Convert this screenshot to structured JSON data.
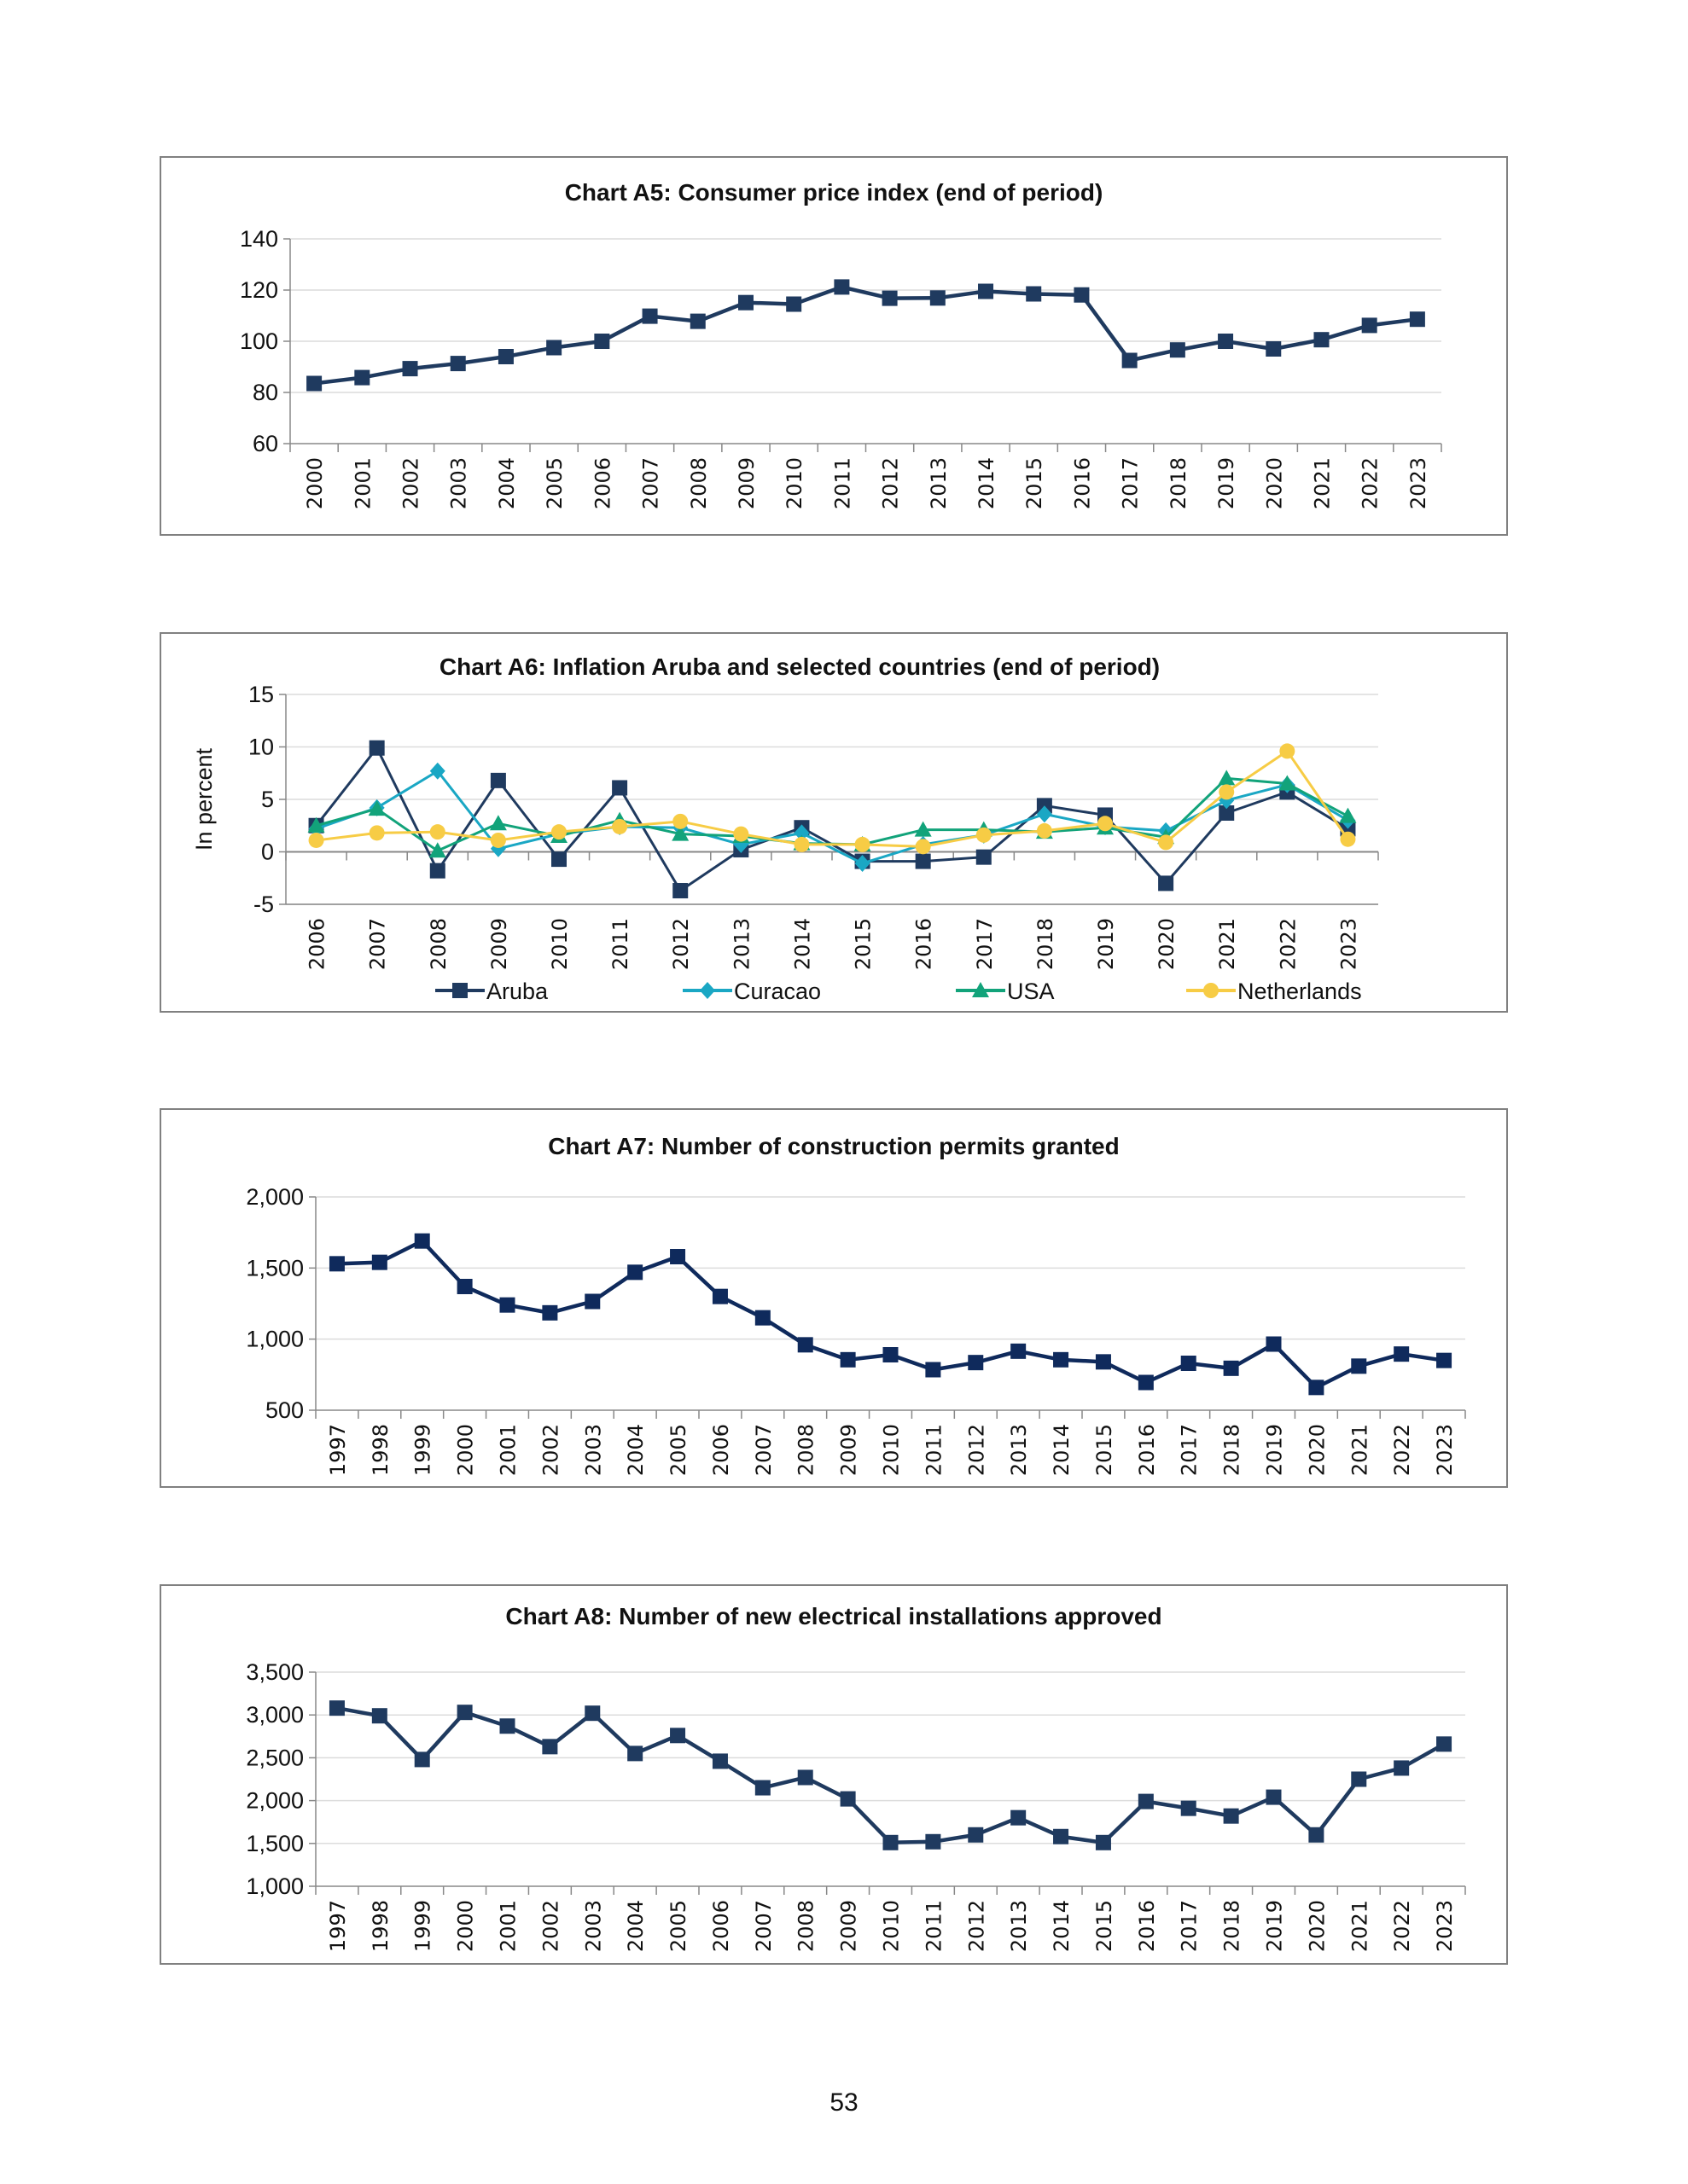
{
  "page_number": "53",
  "chart_data": [
    {
      "type": "line",
      "title": "Chart A5: Consumer price index (end of period)",
      "ylabel": "",
      "ylim": [
        60,
        140
      ],
      "yticks": [
        "60",
        "80",
        "100",
        "120",
        "140"
      ],
      "ytick_values": [
        60,
        80,
        100,
        120,
        140
      ],
      "grid": true,
      "categories": [
        "2000",
        "2001",
        "2002",
        "2003",
        "2004",
        "2005",
        "2006",
        "2007",
        "2008",
        "2009",
        "2010",
        "2011",
        "2012",
        "2013",
        "2014",
        "2015",
        "2016",
        "2017",
        "2018",
        "2019",
        "2020",
        "2021",
        "2022",
        "2023"
      ],
      "series": [
        {
          "color": "#1f3a5f",
          "marker": "square",
          "values": [
            83.5,
            85.8,
            89.3,
            91.3,
            94.0,
            97.5,
            100.0,
            109.8,
            107.8,
            115.1,
            114.5,
            121.2,
            116.8,
            116.9,
            119.5,
            118.5,
            118.1,
            92.5,
            96.6,
            100.0,
            97.0,
            100.6,
            106.2,
            108.6
          ]
        }
      ]
    },
    {
      "type": "line",
      "title": "Chart A6: Inflation  Aruba and selected countries  (end of period)",
      "ylabel": "In percent",
      "ylim": [
        -5,
        15
      ],
      "yticks": [
        "-5",
        "0",
        "5",
        "10",
        "15"
      ],
      "ytick_values": [
        -5,
        0,
        5,
        10,
        15
      ],
      "grid": true,
      "legend": "bottom",
      "categories": [
        "2006",
        "2007",
        "2008",
        "2009",
        "2010",
        "2011",
        "2012",
        "2013",
        "2014",
        "2015",
        "2016",
        "2017",
        "2018",
        "2019",
        "2020",
        "2021",
        "2022",
        "2023"
      ],
      "series": [
        {
          "name": "Aruba",
          "color": "#1f3a5f",
          "marker": "square",
          "values": [
            2.5,
            9.9,
            -1.8,
            6.8,
            -0.7,
            6.1,
            -3.7,
            0.2,
            2.3,
            -0.9,
            -0.9,
            -0.5,
            4.4,
            3.5,
            -3.0,
            3.7,
            5.7,
            2.2
          ]
        },
        {
          "name": "Curacao",
          "color": "#1aa7c4",
          "marker": "diamond",
          "values": [
            2.2,
            4.2,
            7.7,
            0.3,
            1.7,
            2.4,
            2.3,
            0.7,
            1.8,
            -1.1,
            0.7,
            1.6,
            3.6,
            2.4,
            2.0,
            4.9,
            6.4,
            3.0
          ]
        },
        {
          "name": "USA",
          "color": "#12a37a",
          "marker": "triangle",
          "values": [
            2.5,
            4.1,
            0.1,
            2.7,
            1.5,
            3.0,
            1.7,
            1.5,
            0.8,
            0.7,
            2.1,
            2.1,
            1.9,
            2.3,
            1.4,
            7.0,
            6.5,
            3.4
          ]
        },
        {
          "name": "Netherlands",
          "color": "#f7cc45",
          "marker": "circle",
          "values": [
            1.1,
            1.8,
            1.9,
            1.1,
            1.9,
            2.4,
            2.9,
            1.7,
            0.7,
            0.7,
            0.5,
            1.6,
            2.0,
            2.7,
            0.9,
            5.7,
            9.6,
            1.2
          ]
        }
      ]
    },
    {
      "type": "line",
      "title": "Chart A7: Number of construction permits granted",
      "ylabel": "",
      "ylim": [
        500,
        2000
      ],
      "yticks": [
        "500",
        "1,000",
        "1,500",
        "2,000"
      ],
      "ytick_values": [
        500,
        1000,
        1500,
        2000
      ],
      "grid": true,
      "categories": [
        "1997",
        "1998",
        "1999",
        "2000",
        "2001",
        "2002",
        "2003",
        "2004",
        "2005",
        "2006",
        "2007",
        "2008",
        "2009",
        "2010",
        "2011",
        "2012",
        "2013",
        "2014",
        "2015",
        "2016",
        "2017",
        "2018",
        "2019",
        "2020",
        "2021",
        "2022",
        "2023"
      ],
      "series": [
        {
          "color": "#0f2a5c",
          "marker": "square",
          "values": [
            1530,
            1540,
            1690,
            1370,
            1240,
            1185,
            1265,
            1470,
            1580,
            1300,
            1150,
            960,
            855,
            890,
            785,
            835,
            915,
            855,
            840,
            695,
            830,
            795,
            965,
            660,
            810,
            895,
            850
          ]
        }
      ]
    },
    {
      "type": "line",
      "title": "Chart A8: Number of new electrical installations approved",
      "ylabel": "",
      "ylim": [
        1000,
        3500
      ],
      "yticks": [
        "1,000",
        "1,500",
        "2,000",
        "2,500",
        "3,000",
        "3,500"
      ],
      "ytick_values": [
        1000,
        1500,
        2000,
        2500,
        3000,
        3500
      ],
      "grid": true,
      "categories": [
        "1997",
        "1998",
        "1999",
        "2000",
        "2001",
        "2002",
        "2003",
        "2004",
        "2005",
        "2006",
        "2007",
        "2008",
        "2009",
        "2010",
        "2011",
        "2012",
        "2013",
        "2014",
        "2015",
        "2016",
        "2017",
        "2018",
        "2019",
        "2020",
        "2021",
        "2022",
        "2023"
      ],
      "series": [
        {
          "color": "#1f3a5f",
          "marker": "square",
          "values": [
            3080,
            2990,
            2480,
            3030,
            2870,
            2630,
            3020,
            2550,
            2760,
            2460,
            2150,
            2270,
            2020,
            1510,
            1520,
            1600,
            1800,
            1580,
            1510,
            1990,
            1910,
            1820,
            2040,
            1600,
            2250,
            2380,
            2660
          ]
        }
      ]
    }
  ]
}
